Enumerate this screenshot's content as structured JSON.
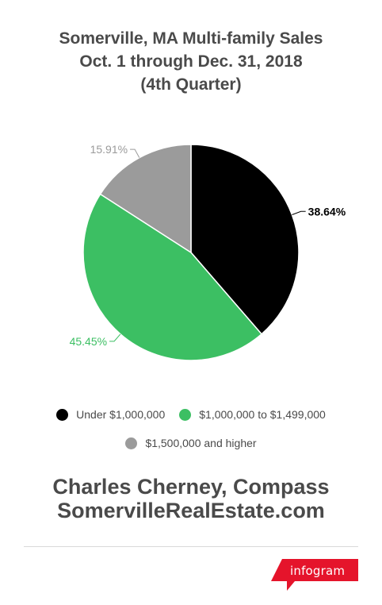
{
  "title_lines": [
    "Somerville, MA Multi-family Sales",
    "Oct. 1 through Dec. 31, 2018",
    "(4th Quarter)"
  ],
  "chart_data": {
    "type": "pie",
    "title": "Somerville, MA Multi-family Sales Oct. 1 through Dec. 31, 2018 (4th Quarter)",
    "slices": [
      {
        "name": "Under $1,000,000",
        "value": 38.64,
        "label": "38.64%",
        "color": "#000000"
      },
      {
        "name": "$1,000,000 to $1,499,000",
        "value": 45.45,
        "label": "45.45%",
        "color": "#3cbf63"
      },
      {
        "name": "$1,500,000 and higher",
        "value": 15.91,
        "label": "15.91%",
        "color": "#9b9b9b"
      }
    ],
    "legend_position": "bottom"
  },
  "footer": {
    "line1": "Charles Cherney, Compass",
    "line2": "SomervilleRealEstate.com"
  },
  "brand": {
    "label": "infogram",
    "color": "#e5142b"
  }
}
